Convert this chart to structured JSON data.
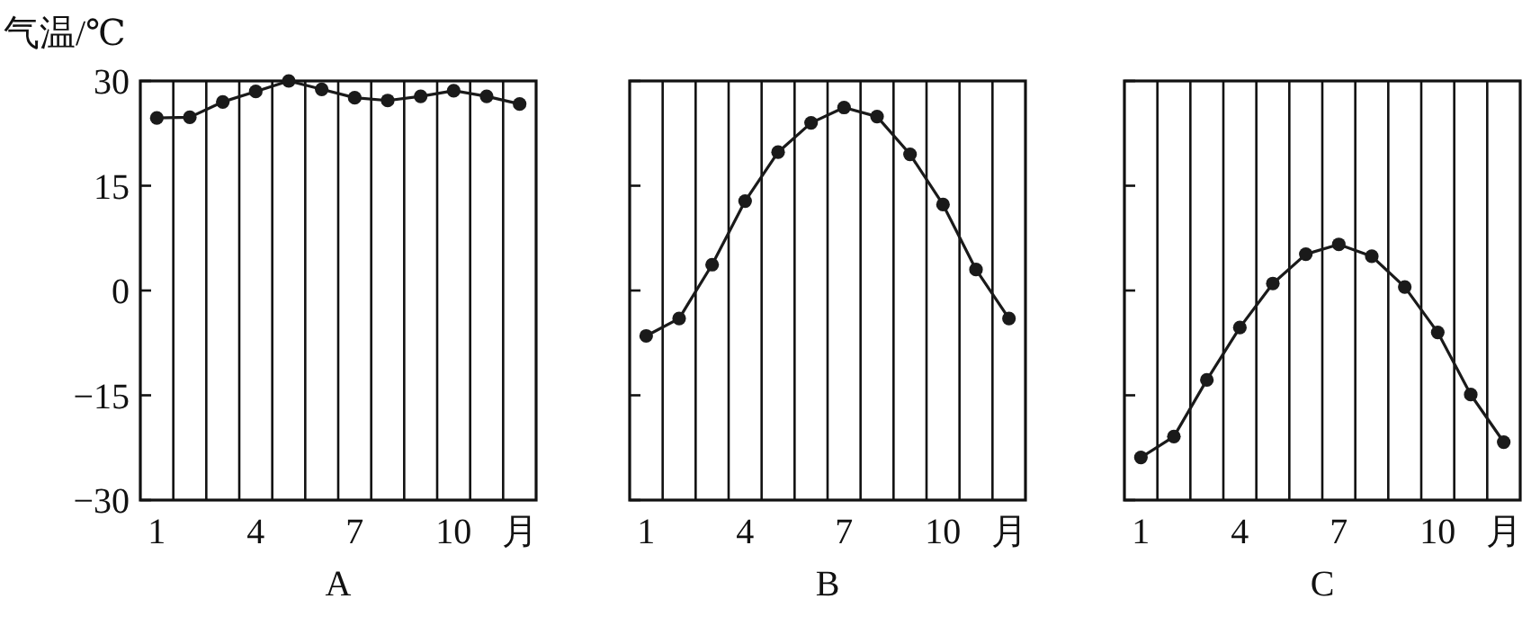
{
  "chart_data": [
    {
      "type": "line",
      "ylabel": "气温/℃",
      "xlabel": "A",
      "categories": [
        "1",
        null,
        null,
        "4",
        null,
        null,
        "7",
        null,
        null,
        "10",
        null,
        "月"
      ],
      "ylim": [
        -30,
        30
      ],
      "yticks": [
        -30,
        -15,
        0,
        15,
        30
      ],
      "grid": "x",
      "marker": "circle",
      "line_style": "solid",
      "series": [
        {
          "color": "#1a1a1a",
          "values": [
            24.7,
            24.8,
            27,
            28.5,
            30,
            28.8,
            27.6,
            27.2,
            27.8,
            28.6,
            27.8,
            26.7
          ]
        }
      ]
    },
    {
      "type": "line",
      "xlabel": "B",
      "categories": [
        "1",
        null,
        null,
        "4",
        null,
        null,
        "7",
        null,
        null,
        "10",
        null,
        "月"
      ],
      "ylim": [
        -30,
        30
      ],
      "yticks": [
        -30,
        -15,
        0,
        15,
        30
      ],
      "tick_labels": "x",
      "grid": "x",
      "marker": "circle",
      "line_style": "solid",
      "series": [
        {
          "color": "#1a1a1a",
          "values": [
            -6.5,
            -4,
            3.7,
            12.8,
            19.8,
            24,
            26.2,
            24.9,
            19.5,
            12.3,
            3,
            -4
          ]
        }
      ]
    },
    {
      "type": "line",
      "xlabel": "C",
      "categories": [
        "1",
        null,
        null,
        "4",
        null,
        null,
        "7",
        null,
        null,
        "10",
        null,
        "月"
      ],
      "ylim": [
        -30,
        30
      ],
      "yticks": [
        -30,
        -15,
        0,
        15,
        30
      ],
      "tick_labels": "x",
      "grid": "x",
      "marker": "circle",
      "line_style": "solid",
      "series": [
        {
          "color": "#1a1a1a",
          "values": [
            -23.9,
            -20.9,
            -12.8,
            -5.3,
            1,
            5.2,
            6.6,
            4.9,
            0.5,
            -6,
            -14.9,
            -21.7
          ]
        }
      ]
    }
  ]
}
